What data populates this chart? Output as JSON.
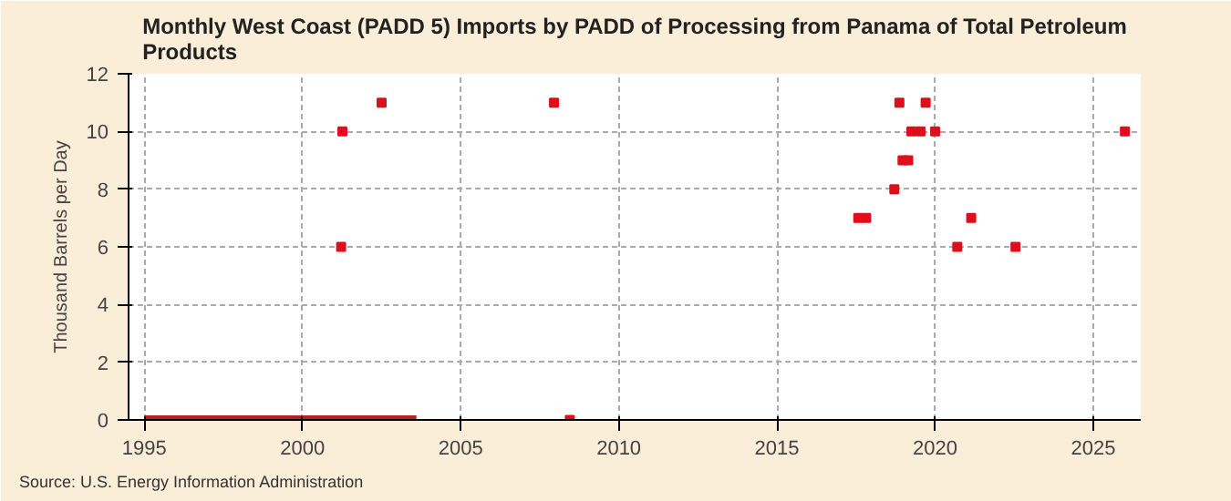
{
  "chart_data": {
    "type": "scatter",
    "title": "Monthly West Coast (PADD 5) Imports by PADD of Processing from Panama of Total Petroleum Products",
    "ylabel": "Thousand Barrels per Day",
    "annotations": [
      "Source: U.S. Energy Information Administration"
    ],
    "xlim": [
      1994.5,
      2026.5
    ],
    "xticks": [
      1995,
      2000,
      2005,
      2010,
      2015,
      2020,
      2025
    ],
    "ylim": [
      0,
      12
    ],
    "yticks": [
      0,
      2,
      4,
      6,
      8,
      10,
      12
    ],
    "grid": true,
    "series": [
      {
        "type": "line",
        "color": "#b22222",
        "x": [
          1995.0,
          2003.6
        ],
        "values": [
          0,
          0
        ]
      },
      {
        "color": "#dd0f1c",
        "marker": "square",
        "x": [
          2001.22,
          2001.26,
          2002.5,
          2007.95,
          2008.45,
          2017.57,
          2017.82,
          2018.71,
          2018.87,
          2018.97,
          2019.15,
          2019.25,
          2019.54,
          2019.7,
          2020.0,
          2020.7,
          2021.14,
          2022.54,
          2026.0
        ],
        "values": [
          6,
          10,
          11,
          11,
          0,
          7,
          7,
          8,
          11,
          9,
          9,
          10,
          10,
          11,
          10,
          6,
          7,
          6,
          10
        ]
      }
    ]
  }
}
